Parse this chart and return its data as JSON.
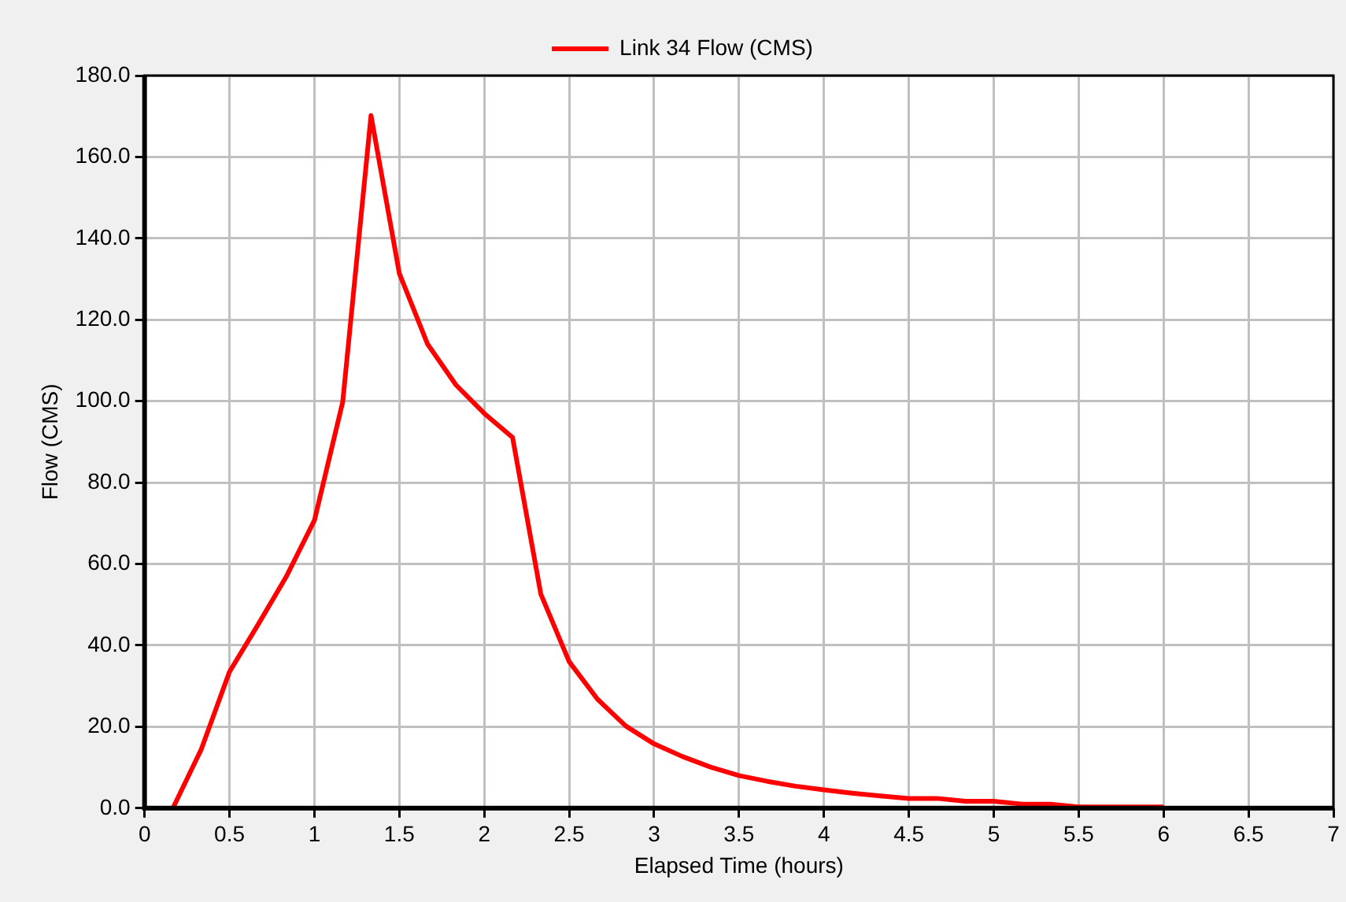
{
  "chart_data": {
    "type": "line",
    "xlabel": "Elapsed Time (hours)",
    "ylabel": "Flow (CMS)",
    "x": [
      0.1667,
      0.3333,
      0.5,
      0.6667,
      0.8333,
      1,
      1.1667,
      1.3333,
      1.5,
      1.6667,
      1.8333,
      2,
      2.1667,
      2.3333,
      2.5,
      2.6667,
      2.8333,
      3,
      3.1667,
      3.3333,
      3.5,
      3.6667,
      3.8333,
      4,
      4.1667,
      4.3333,
      4.5,
      4.6667,
      4.8333,
      5,
      5.1667,
      5.3333,
      5.5,
      5.6667,
      5.8333,
      6
    ],
    "series": [
      {
        "name": "Link 34 Flow (CMS)",
        "color": "#ff0000",
        "values": [
          0,
          14.4,
          33.5,
          45,
          56.8,
          70.7,
          99.8,
          170.2,
          131.4,
          114,
          104,
          97,
          91.1,
          52.6,
          36,
          26.8,
          20.2,
          15.8,
          12.7,
          10.1,
          8,
          6.6,
          5.4,
          4.5,
          3.7,
          3,
          2.4,
          2.4,
          1.7,
          1.7,
          1,
          1,
          0.3,
          0.3,
          0.3,
          0.3
        ]
      }
    ],
    "xlim": [
      0,
      7
    ],
    "xticks": [
      0,
      0.5,
      1,
      1.5,
      2,
      2.5,
      3,
      3.5,
      4,
      4.5,
      5,
      5.5,
      6,
      6.5,
      7
    ],
    "ylim": [
      0,
      180
    ],
    "yticks": [
      {
        "value": 0,
        "label": "0.0"
      },
      {
        "value": 20,
        "label": "20.0"
      },
      {
        "value": 40,
        "label": "40.0"
      },
      {
        "value": 60,
        "label": "60.0"
      },
      {
        "value": 80,
        "label": "80.0"
      },
      {
        "value": 100,
        "label": "100.0"
      },
      {
        "value": 120,
        "label": "120.0"
      },
      {
        "value": 140,
        "label": "140.0"
      },
      {
        "value": 160,
        "label": "160.0"
      },
      {
        "value": 180,
        "label": "180.0"
      }
    ],
    "grid": true,
    "legend": "top",
    "marker": "none",
    "line_style": "solid"
  }
}
